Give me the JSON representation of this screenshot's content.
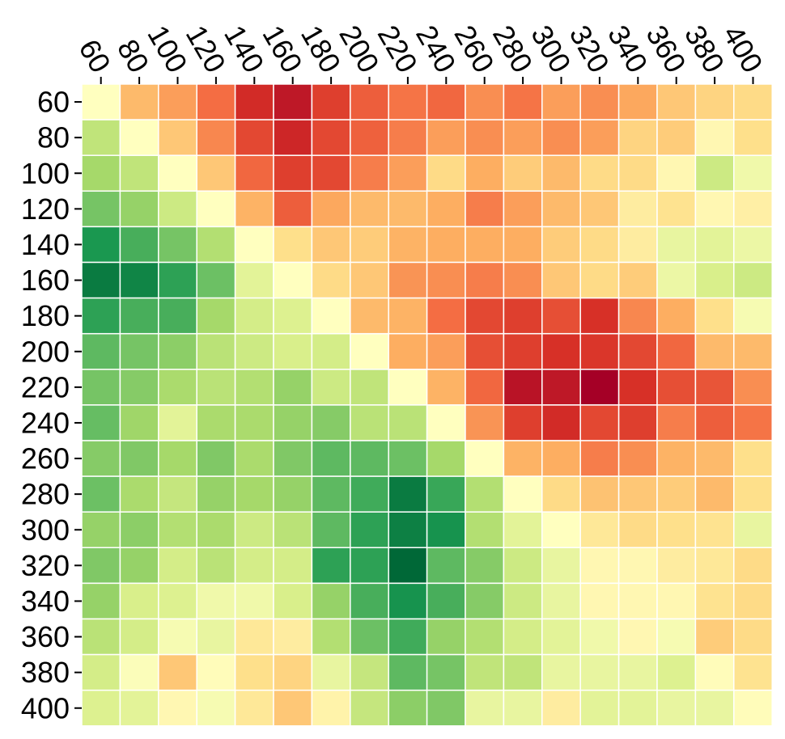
{
  "chart_data": {
    "type": "heatmap",
    "title": "",
    "xlabel": "",
    "ylabel": "",
    "x_categories": [
      "60",
      "80",
      "100",
      "120",
      "140",
      "160",
      "180",
      "200",
      "220",
      "240",
      "260",
      "280",
      "300",
      "320",
      "340",
      "360",
      "380",
      "400"
    ],
    "y_categories": [
      "60",
      "80",
      "100",
      "120",
      "140",
      "160",
      "180",
      "200",
      "220",
      "240",
      "260",
      "280",
      "300",
      "320",
      "340",
      "360",
      "380",
      "400"
    ],
    "colormap": "RdYlGn",
    "color_range": [
      -1,
      1
    ],
    "x_axis_position": "top",
    "x_tick_rotation": 60,
    "grid": false,
    "legend": "none",
    "cell_border_color": "#ffffff",
    "values": [
      [
        0.0,
        0.35,
        0.45,
        0.6,
        0.82,
        0.9,
        0.75,
        0.65,
        0.58,
        0.62,
        0.5,
        0.58,
        0.45,
        0.5,
        0.42,
        0.3,
        0.25,
        0.22
      ],
      [
        -0.3,
        0.0,
        0.3,
        0.52,
        0.72,
        0.84,
        0.72,
        0.64,
        0.55,
        0.45,
        0.5,
        0.45,
        0.5,
        0.45,
        0.25,
        0.28,
        0.05,
        0.2
      ],
      [
        -0.4,
        -0.3,
        0.0,
        0.3,
        0.62,
        0.75,
        0.72,
        0.55,
        0.45,
        0.22,
        0.4,
        0.28,
        0.35,
        0.22,
        0.22,
        0.05,
        -0.25,
        -0.08
      ],
      [
        -0.55,
        -0.45,
        -0.25,
        0.0,
        0.38,
        0.65,
        0.42,
        0.35,
        0.35,
        0.4,
        0.55,
        0.45,
        0.35,
        0.3,
        0.12,
        0.18,
        0.05,
        0.1
      ],
      [
        -0.8,
        -0.68,
        -0.55,
        -0.35,
        0.0,
        0.2,
        0.3,
        0.28,
        0.38,
        0.4,
        0.4,
        0.4,
        0.28,
        0.22,
        0.12,
        -0.12,
        -0.15,
        -0.1
      ],
      [
        -0.92,
        -0.88,
        -0.75,
        -0.58,
        -0.15,
        0.0,
        0.22,
        0.3,
        0.48,
        0.5,
        0.55,
        0.5,
        0.3,
        0.22,
        0.28,
        -0.1,
        -0.2,
        -0.25
      ],
      [
        -0.75,
        -0.68,
        -0.68,
        -0.4,
        -0.22,
        -0.18,
        0.0,
        0.35,
        0.38,
        0.6,
        0.72,
        0.75,
        0.7,
        0.8,
        0.52,
        0.4,
        0.2,
        -0.05
      ],
      [
        -0.62,
        -0.55,
        -0.48,
        -0.32,
        -0.25,
        -0.2,
        -0.22,
        0.0,
        0.4,
        0.45,
        0.7,
        0.75,
        0.8,
        0.78,
        0.72,
        0.62,
        0.35,
        0.35
      ],
      [
        -0.55,
        -0.5,
        -0.38,
        -0.32,
        -0.35,
        -0.45,
        -0.25,
        -0.3,
        0.0,
        0.38,
        0.62,
        0.92,
        0.9,
        1.0,
        0.8,
        0.7,
        0.68,
        0.5
      ],
      [
        -0.6,
        -0.42,
        -0.15,
        -0.38,
        -0.38,
        -0.45,
        -0.5,
        -0.32,
        -0.32,
        0.0,
        0.48,
        0.75,
        0.82,
        0.72,
        0.75,
        0.55,
        0.65,
        0.58
      ],
      [
        -0.5,
        -0.52,
        -0.4,
        -0.52,
        -0.38,
        -0.52,
        -0.62,
        -0.62,
        -0.58,
        -0.4,
        0.0,
        0.38,
        0.4,
        0.55,
        0.5,
        0.38,
        0.35,
        0.2
      ],
      [
        -0.58,
        -0.38,
        -0.28,
        -0.45,
        -0.4,
        -0.45,
        -0.62,
        -0.7,
        -0.92,
        -0.72,
        -0.35,
        0.0,
        0.22,
        0.32,
        0.3,
        0.28,
        0.35,
        0.2
      ],
      [
        -0.45,
        -0.48,
        -0.35,
        -0.38,
        -0.25,
        -0.32,
        -0.62,
        -0.75,
        -0.9,
        -0.82,
        -0.35,
        -0.15,
        0.0,
        0.15,
        0.22,
        0.2,
        0.18,
        -0.12
      ],
      [
        -0.52,
        -0.45,
        -0.22,
        -0.32,
        -0.22,
        -0.22,
        -0.75,
        -0.75,
        -1.0,
        -0.62,
        -0.5,
        -0.25,
        -0.12,
        0.05,
        0.05,
        0.12,
        0.15,
        0.22
      ],
      [
        -0.45,
        -0.2,
        -0.18,
        -0.08,
        -0.08,
        -0.2,
        -0.45,
        -0.68,
        -0.82,
        -0.68,
        -0.5,
        -0.25,
        -0.12,
        0.05,
        0.05,
        0.05,
        0.18,
        0.22
      ],
      [
        -0.32,
        -0.22,
        -0.05,
        -0.12,
        0.15,
        0.12,
        -0.35,
        -0.58,
        -0.7,
        -0.45,
        -0.35,
        -0.22,
        -0.15,
        -0.08,
        0.05,
        -0.05,
        0.28,
        0.22
      ],
      [
        -0.22,
        -0.02,
        0.3,
        0.02,
        0.2,
        0.25,
        -0.12,
        -0.28,
        -0.62,
        -0.55,
        -0.3,
        -0.3,
        -0.12,
        -0.12,
        -0.12,
        -0.18,
        0.02,
        0.18
      ],
      [
        -0.18,
        -0.15,
        0.05,
        -0.05,
        0.15,
        0.3,
        0.08,
        -0.28,
        -0.48,
        -0.52,
        -0.12,
        -0.12,
        0.12,
        -0.15,
        -0.15,
        -0.12,
        -0.12,
        0.02
      ]
    ]
  }
}
